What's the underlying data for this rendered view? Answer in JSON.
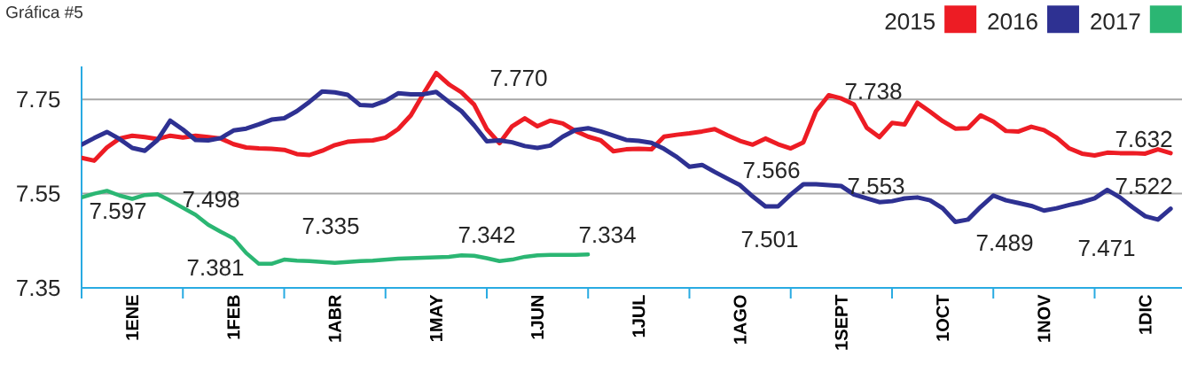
{
  "chart_data": {
    "type": "line",
    "title": "Gráfica #5",
    "categories": [
      null,
      null,
      null,
      null,
      "1ENE",
      null,
      null,
      null,
      null,
      null,
      null,
      null,
      "1FEB",
      null,
      null,
      null,
      null,
      null,
      null,
      null,
      "1ABR",
      null,
      null,
      null,
      null,
      null,
      null,
      null,
      "1MAY",
      null,
      null,
      null,
      null,
      null,
      null,
      null,
      "1JUN",
      null,
      null,
      null,
      null,
      null,
      null,
      null,
      "1JUL",
      null,
      null,
      null,
      null,
      null,
      null,
      null,
      "1AGO",
      null,
      null,
      null,
      null,
      null,
      null,
      null,
      "1SEPT",
      null,
      null,
      null,
      null,
      null,
      null,
      null,
      "1OCT",
      null,
      null,
      null,
      null,
      null,
      null,
      null,
      "1NOV",
      null,
      null,
      null,
      null,
      null,
      null,
      null,
      "1DIC",
      null,
      null
    ],
    "ylim": [
      7.35,
      7.82
    ],
    "yticks": [
      7.35,
      7.55,
      7.75
    ],
    "grid": "y",
    "legend": "top right",
    "marker": "none",
    "line_style": "solid",
    "series": [
      {
        "name": "2015",
        "color": "#ed1c24",
        "values": [
          7.626,
          7.62,
          7.648,
          7.667,
          7.673,
          7.67,
          7.666,
          7.673,
          7.669,
          7.673,
          7.67,
          7.667,
          7.655,
          7.648,
          7.646,
          7.645,
          7.643,
          7.634,
          7.632,
          7.641,
          7.653,
          7.66,
          7.662,
          7.663,
          7.669,
          7.687,
          7.716,
          7.762,
          7.806,
          7.782,
          7.765,
          7.739,
          7.687,
          7.657,
          7.693,
          7.71,
          7.693,
          7.705,
          7.699,
          7.683,
          7.671,
          7.663,
          7.64,
          7.644,
          7.645,
          7.644,
          7.671,
          7.675,
          7.678,
          7.682,
          7.687,
          7.674,
          7.662,
          7.654,
          7.667,
          7.655,
          7.646,
          7.659,
          7.725,
          7.759,
          7.752,
          7.739,
          7.69,
          7.67,
          7.7,
          7.697,
          7.743,
          7.724,
          7.704,
          7.688,
          7.689,
          7.716,
          7.703,
          7.683,
          7.682,
          7.692,
          7.685,
          7.669,
          7.646,
          7.635,
          7.631,
          7.637,
          7.636,
          7.636,
          7.635,
          7.644,
          7.636
        ]
      },
      {
        "name": "2016",
        "color": "#2e3192",
        "values": [
          7.654,
          7.668,
          7.681,
          7.666,
          7.647,
          7.641,
          7.664,
          7.705,
          7.686,
          7.664,
          7.663,
          7.668,
          7.684,
          7.688,
          7.697,
          7.707,
          7.71,
          7.725,
          7.745,
          7.767,
          7.765,
          7.76,
          7.738,
          7.737,
          7.747,
          7.763,
          7.761,
          7.761,
          7.766,
          7.745,
          7.725,
          7.695,
          7.661,
          7.663,
          7.659,
          7.651,
          7.647,
          7.652,
          7.671,
          7.685,
          7.689,
          7.682,
          7.673,
          7.664,
          7.662,
          7.658,
          7.645,
          7.628,
          7.607,
          7.611,
          7.596,
          7.582,
          7.568,
          7.544,
          7.523,
          7.523,
          7.548,
          7.57,
          7.57,
          7.568,
          7.566,
          7.548,
          7.54,
          7.532,
          7.534,
          7.54,
          7.542,
          7.536,
          7.519,
          7.49,
          7.495,
          7.522,
          7.546,
          7.536,
          7.53,
          7.524,
          7.514,
          7.519,
          7.526,
          7.532,
          7.54,
          7.558,
          7.542,
          7.521,
          7.502,
          7.495,
          7.518
        ]
      },
      {
        "name": "2017",
        "color": "#2bb673",
        "values": [
          7.542,
          7.55,
          7.556,
          7.546,
          7.539,
          7.547,
          7.549,
          7.535,
          7.52,
          7.505,
          7.484,
          7.469,
          7.455,
          7.424,
          7.401,
          7.401,
          7.41,
          7.408,
          7.407,
          7.405,
          7.403,
          7.405,
          7.407,
          7.408,
          7.41,
          7.412,
          7.413,
          7.414,
          7.415,
          7.416,
          7.419,
          7.418,
          7.413,
          7.407,
          7.41,
          7.416,
          7.419,
          7.42,
          7.42,
          7.42,
          7.421,
          null,
          null,
          null,
          null,
          null,
          null,
          null,
          null,
          null,
          null,
          null,
          null,
          null,
          null,
          null,
          null,
          null,
          null,
          null,
          null,
          null,
          null,
          null,
          null,
          null,
          null,
          null,
          null,
          null,
          null,
          null,
          null,
          null,
          null,
          null,
          null,
          null,
          null,
          null,
          null,
          null,
          null,
          null,
          null,
          null,
          null
        ]
      }
    ],
    "annotations": [
      "7.770",
      "7.738",
      "7.632",
      "7.566",
      "7.553",
      "7.501",
      "7.489",
      "7.471",
      "7.522",
      "7.597",
      "7.498",
      "7.381",
      "7.335",
      "7.342",
      "7.334"
    ]
  }
}
